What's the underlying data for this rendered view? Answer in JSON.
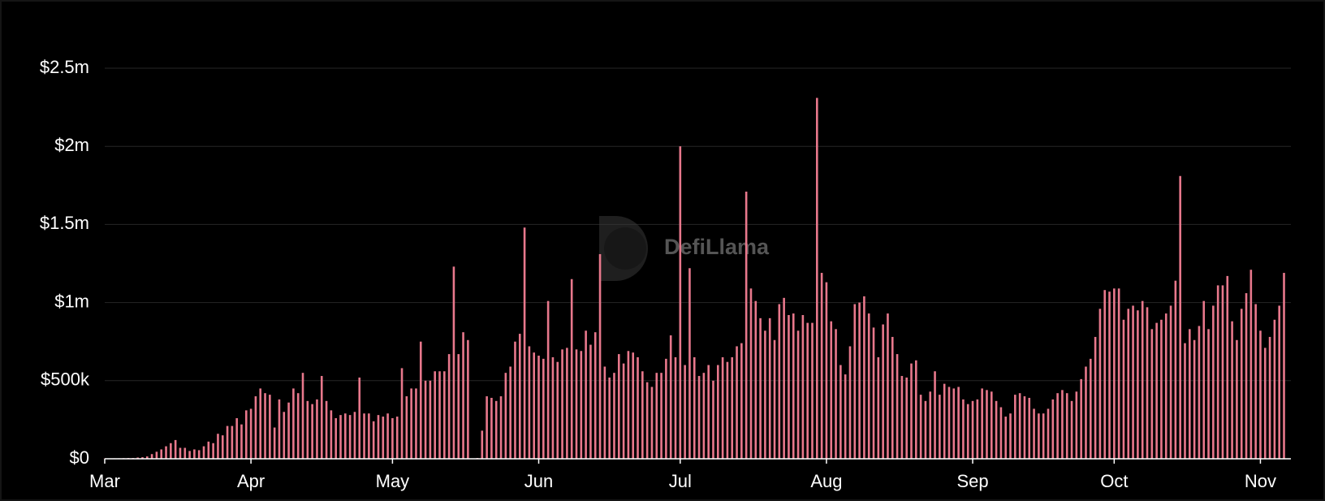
{
  "chart_data": {
    "type": "bar",
    "watermark": "DefiLlama",
    "color": "#e8788c",
    "grid": true,
    "ylim": [
      0,
      2500000
    ],
    "yticks": [
      {
        "value": 0,
        "label": "$0"
      },
      {
        "value": 500000,
        "label": "$500k"
      },
      {
        "value": 1000000,
        "label": "$1m"
      },
      {
        "value": 1500000,
        "label": "$1.5m"
      },
      {
        "value": 2000000,
        "label": "$2m"
      },
      {
        "value": 2500000,
        "label": "$2.5m"
      }
    ],
    "categories": [
      "Mar",
      null,
      null,
      null,
      null,
      null,
      null,
      null,
      null,
      null,
      null,
      null,
      null,
      null,
      null,
      null,
      null,
      null,
      null,
      null,
      null,
      null,
      null,
      null,
      null,
      null,
      null,
      null,
      null,
      null,
      null,
      "Apr",
      null,
      null,
      null,
      null,
      null,
      null,
      null,
      null,
      null,
      null,
      null,
      null,
      null,
      null,
      null,
      null,
      null,
      null,
      null,
      null,
      null,
      null,
      null,
      null,
      null,
      null,
      null,
      null,
      null,
      "May",
      null,
      null,
      null,
      null,
      null,
      null,
      null,
      null,
      null,
      null,
      null,
      null,
      null,
      null,
      null,
      null,
      null,
      null,
      null,
      null,
      null,
      null,
      null,
      null,
      null,
      null,
      null,
      null,
      null,
      null,
      "Jun",
      null,
      null,
      null,
      null,
      null,
      null,
      null,
      null,
      null,
      null,
      null,
      null,
      null,
      null,
      null,
      null,
      null,
      null,
      null,
      null,
      null,
      null,
      null,
      null,
      null,
      null,
      null,
      null,
      null,
      "Jul",
      null,
      null,
      null,
      null,
      null,
      null,
      null,
      null,
      null,
      null,
      null,
      null,
      null,
      null,
      null,
      null,
      null,
      null,
      null,
      null,
      null,
      null,
      null,
      null,
      null,
      null,
      null,
      null,
      null,
      null,
      "Aug",
      null,
      null,
      null,
      null,
      null,
      null,
      null,
      null,
      null,
      null,
      null,
      null,
      null,
      null,
      null,
      null,
      null,
      null,
      null,
      null,
      null,
      null,
      null,
      null,
      null,
      null,
      null,
      null,
      null,
      null,
      "Sep",
      null,
      null,
      null,
      null,
      null,
      null,
      null,
      null,
      null,
      null,
      null,
      null,
      null,
      null,
      null,
      null,
      null,
      null,
      null,
      null,
      null,
      null,
      null,
      null,
      null,
      null,
      null,
      null,
      null,
      "Oct",
      null,
      null,
      null,
      null,
      null,
      null,
      null,
      null,
      null,
      null,
      null,
      null,
      null,
      null,
      null,
      null,
      null,
      null,
      null,
      null,
      null,
      null,
      null,
      null,
      null,
      null,
      null,
      null,
      null,
      null,
      "Nov",
      null,
      null,
      null,
      null,
      null
    ],
    "values": [
      2000,
      2000,
      3000,
      3000,
      4000,
      5000,
      5000,
      8000,
      10000,
      15000,
      30000,
      45000,
      60000,
      80000,
      100000,
      120000,
      70000,
      70000,
      50000,
      60000,
      55000,
      80000,
      110000,
      100000,
      160000,
      150000,
      210000,
      210000,
      260000,
      220000,
      310000,
      320000,
      400000,
      450000,
      420000,
      410000,
      200000,
      380000,
      300000,
      360000,
      450000,
      420000,
      550000,
      370000,
      350000,
      380000,
      530000,
      370000,
      310000,
      260000,
      280000,
      290000,
      280000,
      300000,
      520000,
      290000,
      290000,
      240000,
      280000,
      270000,
      290000,
      260000,
      270000,
      580000,
      400000,
      450000,
      450000,
      750000,
      500000,
      500000,
      560000,
      560000,
      560000,
      670000,
      1230000,
      670000,
      810000,
      760000,
      0,
      5000,
      180000,
      400000,
      390000,
      370000,
      400000,
      550000,
      590000,
      750000,
      800000,
      1480000,
      720000,
      680000,
      660000,
      640000,
      1010000,
      650000,
      620000,
      700000,
      710000,
      1150000,
      700000,
      690000,
      820000,
      730000,
      810000,
      1310000,
      590000,
      520000,
      550000,
      670000,
      610000,
      690000,
      680000,
      650000,
      560000,
      490000,
      460000,
      550000,
      550000,
      640000,
      790000,
      650000,
      2000000,
      600000,
      1220000,
      650000,
      530000,
      550000,
      600000,
      500000,
      600000,
      650000,
      620000,
      650000,
      720000,
      740000,
      1710000,
      1090000,
      1010000,
      900000,
      820000,
      900000,
      760000,
      990000,
      1030000,
      920000,
      930000,
      820000,
      920000,
      870000,
      870000,
      2310000,
      1190000,
      1130000,
      880000,
      830000,
      600000,
      540000,
      720000,
      990000,
      1000000,
      1040000,
      930000,
      840000,
      650000,
      860000,
      930000,
      780000,
      670000,
      530000,
      520000,
      610000,
      630000,
      410000,
      370000,
      430000,
      560000,
      410000,
      480000,
      460000,
      450000,
      460000,
      380000,
      350000,
      370000,
      380000,
      450000,
      440000,
      430000,
      370000,
      330000,
      270000,
      290000,
      410000,
      420000,
      400000,
      390000,
      320000,
      290000,
      290000,
      320000,
      380000,
      420000,
      440000,
      420000,
      370000,
      430000,
      510000,
      590000,
      640000,
      780000,
      960000,
      1080000,
      1070000,
      1090000,
      1090000,
      890000,
      960000,
      980000,
      950000,
      1010000,
      970000,
      830000,
      870000,
      890000,
      930000,
      980000,
      1140000,
      1810000,
      740000,
      830000,
      760000,
      850000,
      1010000,
      830000,
      980000,
      1110000,
      1110000,
      1170000,
      880000,
      760000,
      960000,
      1060000,
      1210000,
      990000,
      820000,
      710000,
      780000,
      890000,
      980000,
      1190000
    ]
  }
}
